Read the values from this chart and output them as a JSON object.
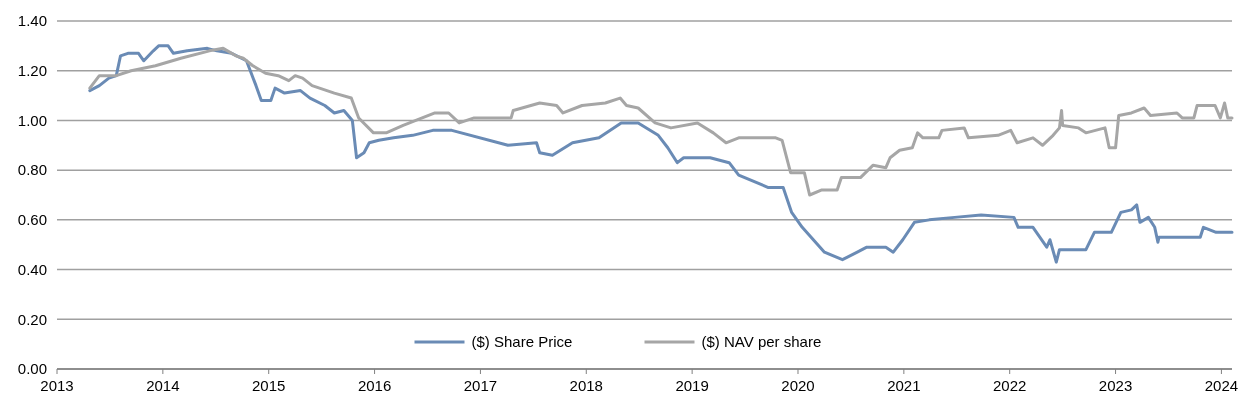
{
  "chart_data": {
    "type": "line",
    "xlim": [
      2013,
      2024.1
    ],
    "xticks": [
      2013,
      2014,
      2015,
      2016,
      2017,
      2018,
      2019,
      2020,
      2021,
      2022,
      2023,
      2024
    ],
    "ylim": [
      0,
      1.4
    ],
    "yticks": [
      {
        "value": 0,
        "label": "0.00"
      },
      {
        "value": 0.2,
        "label": "0.20"
      },
      {
        "value": 0.4,
        "label": "0.40"
      },
      {
        "value": 0.6,
        "label": "0.60"
      },
      {
        "value": 0.8,
        "label": "0.80"
      },
      {
        "value": 1.0,
        "label": "1.00"
      },
      {
        "value": 1.2,
        "label": "1.20"
      },
      {
        "value": 1.4,
        "label": "1.40"
      }
    ],
    "grid": "y",
    "legend": "bottom",
    "marker": "none",
    "line_style": "solid",
    "series": [
      {
        "name": "($) Share Price",
        "color": "#6a8bb5",
        "x": [
          2013.31,
          2013.4,
          2013.49,
          2013.56,
          2013.6,
          2013.67,
          2013.77,
          2013.82,
          2013.91,
          2013.96,
          2014.05,
          2014.1,
          2014.23,
          2014.42,
          2014.51,
          2014.65,
          2014.79,
          2014.88,
          2014.93,
          2015.02,
          2015.06,
          2015.15,
          2015.3,
          2015.39,
          2015.53,
          2015.62,
          2015.71,
          2015.79,
          2015.83,
          2015.9,
          2015.95,
          2016.04,
          2016.18,
          2016.36,
          2016.55,
          2016.73,
          2017.26,
          2017.53,
          2017.56,
          2017.68,
          2017.87,
          2018.12,
          2018.33,
          2018.49,
          2018.68,
          2018.77,
          2018.86,
          2018.92,
          2019.17,
          2019.35,
          2019.44,
          2019.72,
          2019.86,
          2019.94,
          2020.04,
          2020.25,
          2020.42,
          2020.56,
          2020.65,
          2020.83,
          2020.9,
          2020.99,
          2021.1,
          2021.24,
          2021.48,
          2021.73,
          2022.04,
          2022.08,
          2022.22,
          2022.35,
          2022.38,
          2022.44,
          2022.47,
          2022.72,
          2022.8,
          2022.96,
          2023.05,
          2023.15,
          2023.2,
          2023.23,
          2023.31,
          2023.37,
          2023.4,
          2023.41,
          2023.68,
          2023.8,
          2023.83,
          2023.95,
          2024.1
        ],
        "values": [
          1.12,
          1.14,
          1.17,
          1.18,
          1.26,
          1.27,
          1.27,
          1.24,
          1.28,
          1.3,
          1.3,
          1.27,
          1.28,
          1.29,
          1.28,
          1.27,
          1.24,
          1.14,
          1.08,
          1.08,
          1.13,
          1.11,
          1.12,
          1.09,
          1.06,
          1.03,
          1.04,
          1.0,
          0.85,
          0.87,
          0.91,
          0.92,
          0.93,
          0.94,
          0.96,
          0.96,
          0.9,
          0.91,
          0.87,
          0.86,
          0.91,
          0.93,
          0.99,
          0.99,
          0.94,
          0.89,
          0.83,
          0.85,
          0.85,
          0.83,
          0.78,
          0.73,
          0.73,
          0.63,
          0.57,
          0.47,
          0.44,
          0.47,
          0.49,
          0.49,
          0.47,
          0.52,
          0.59,
          0.6,
          0.61,
          0.62,
          0.61,
          0.57,
          0.57,
          0.49,
          0.52,
          0.43,
          0.48,
          0.48,
          0.55,
          0.55,
          0.63,
          0.64,
          0.66,
          0.59,
          0.61,
          0.57,
          0.51,
          0.53,
          0.53,
          0.53,
          0.57,
          0.55,
          0.55
        ]
      },
      {
        "name": "($) NAV per share",
        "color": "#a6a6a6",
        "x": [
          2013.31,
          2013.4,
          2013.56,
          2013.7,
          2013.93,
          2014.17,
          2014.44,
          2014.57,
          2014.69,
          2014.76,
          2014.85,
          2014.97,
          2015.09,
          2015.19,
          2015.25,
          2015.32,
          2015.41,
          2015.62,
          2015.78,
          2015.85,
          2015.99,
          2016.11,
          2016.27,
          2016.39,
          2016.57,
          2016.7,
          2016.8,
          2016.94,
          2017.29,
          2017.31,
          2017.56,
          2017.72,
          2017.78,
          2017.96,
          2018.18,
          2018.32,
          2018.38,
          2018.49,
          2018.65,
          2018.8,
          2019.05,
          2019.2,
          2019.32,
          2019.44,
          2019.79,
          2019.85,
          2019.93,
          2020.06,
          2020.11,
          2020.22,
          2020.37,
          2020.41,
          2020.59,
          2020.71,
          2020.83,
          2020.87,
          2020.96,
          2021.08,
          2021.13,
          2021.18,
          2021.33,
          2021.36,
          2021.57,
          2021.61,
          2021.89,
          2022.01,
          2022.07,
          2022.22,
          2022.31,
          2022.41,
          2022.47,
          2022.49,
          2022.5,
          2022.65,
          2022.72,
          2022.9,
          2022.94,
          2023.0,
          2023.03,
          2023.15,
          2023.27,
          2023.33,
          2023.58,
          2023.63,
          2023.74,
          2023.77,
          2023.94,
          2023.99,
          2024.03,
          2024.06,
          2024.1
        ],
        "values": [
          1.13,
          1.18,
          1.18,
          1.2,
          1.22,
          1.25,
          1.28,
          1.29,
          1.26,
          1.25,
          1.22,
          1.19,
          1.18,
          1.16,
          1.18,
          1.17,
          1.14,
          1.11,
          1.09,
          1.01,
          0.95,
          0.95,
          0.98,
          1.0,
          1.03,
          1.03,
          0.99,
          1.01,
          1.01,
          1.04,
          1.07,
          1.06,
          1.03,
          1.06,
          1.07,
          1.09,
          1.06,
          1.05,
          0.99,
          0.97,
          0.99,
          0.95,
          0.91,
          0.93,
          0.93,
          0.92,
          0.79,
          0.79,
          0.7,
          0.72,
          0.72,
          0.77,
          0.77,
          0.82,
          0.81,
          0.85,
          0.88,
          0.89,
          0.95,
          0.93,
          0.93,
          0.96,
          0.97,
          0.93,
          0.94,
          0.96,
          0.91,
          0.93,
          0.9,
          0.94,
          0.97,
          1.04,
          0.98,
          0.97,
          0.95,
          0.97,
          0.89,
          0.89,
          1.02,
          1.03,
          1.05,
          1.02,
          1.03,
          1.01,
          1.01,
          1.06,
          1.06,
          1.01,
          1.07,
          1.01,
          1.01
        ]
      }
    ]
  }
}
